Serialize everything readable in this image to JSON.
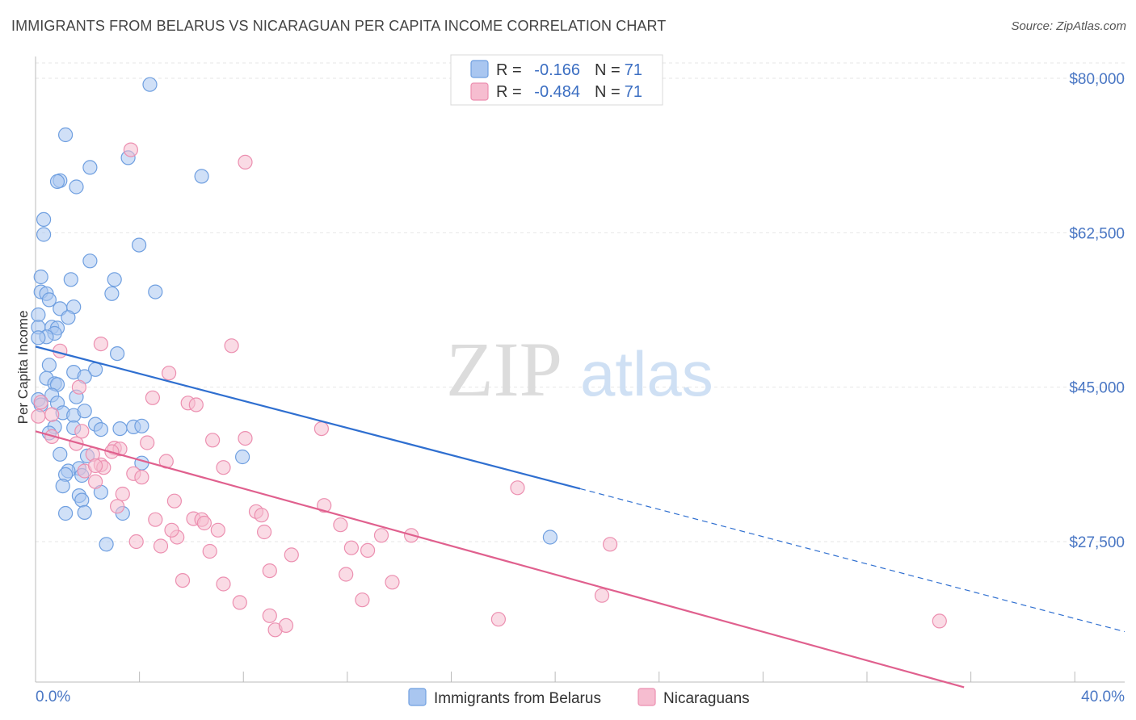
{
  "title": "IMMIGRANTS FROM BELARUS VS NICARAGUAN PER CAPITA INCOME CORRELATION CHART",
  "source": "Source: ZipAtlas.com",
  "watermark": {
    "zip": "ZIP",
    "atlas": "atlas"
  },
  "colors": {
    "blue_fill": "#a9c6f0",
    "blue_stroke": "#6f9fe0",
    "blue_line": "#2f6fd0",
    "pink_fill": "#f6bdd0",
    "pink_stroke": "#ec8fb0",
    "pink_line": "#e0608e",
    "grid": "#e6e6e6",
    "tick_text": "#4a77c4"
  },
  "legend": {
    "rows": [
      {
        "r_label": "R =",
        "r_value": "-0.166",
        "n_label": "N =",
        "n_value": "71"
      },
      {
        "r_label": "R =",
        "r_value": "-0.484",
        "n_label": "N =",
        "n_value": "71"
      }
    ]
  },
  "chart_data": {
    "type": "scatter",
    "title": "IMMIGRANTS FROM BELARUS VS NICARAGUAN PER CAPITA INCOME CORRELATION CHART",
    "xlabel": "",
    "ylabel": "Per Capita Income",
    "xlim": [
      0,
      40
    ],
    "ylim": [
      11000,
      82000
    ],
    "x_tick_labels": [
      "0.0%",
      "40.0%"
    ],
    "y_ticks": [
      {
        "value": 80000,
        "label": "$80,000"
      },
      {
        "value": 62500,
        "label": "$62,500"
      },
      {
        "value": 45000,
        "label": "$45,000"
      },
      {
        "value": 27500,
        "label": "$27,500"
      }
    ],
    "series": [
      {
        "name": "Immigrants from Belarus",
        "color": "blue",
        "trend": {
          "x0": 0,
          "y0": 49600,
          "x1": 20,
          "y1": 33500,
          "dash_to": 40,
          "dash_y": 17300
        },
        "points": [
          [
            4.2,
            79300
          ],
          [
            1.1,
            73600
          ],
          [
            3.4,
            71000
          ],
          [
            2.0,
            69900
          ],
          [
            6.1,
            68900
          ],
          [
            0.9,
            68400
          ],
          [
            0.8,
            68300
          ],
          [
            1.5,
            67700
          ],
          [
            0.3,
            64000
          ],
          [
            0.3,
            62300
          ],
          [
            3.8,
            61100
          ],
          [
            0.2,
            57500
          ],
          [
            2.0,
            59300
          ],
          [
            1.3,
            57200
          ],
          [
            2.9,
            57200
          ],
          [
            0.2,
            55800
          ],
          [
            0.4,
            55600
          ],
          [
            2.8,
            55600
          ],
          [
            4.4,
            55800
          ],
          [
            0.5,
            54900
          ],
          [
            1.4,
            54100
          ],
          [
            0.9,
            53900
          ],
          [
            0.1,
            53200
          ],
          [
            1.2,
            52900
          ],
          [
            0.6,
            51800
          ],
          [
            0.1,
            51800
          ],
          [
            0.8,
            51700
          ],
          [
            0.7,
            51100
          ],
          [
            0.4,
            50700
          ],
          [
            0.1,
            50600
          ],
          [
            3.0,
            48800
          ],
          [
            0.5,
            47500
          ],
          [
            2.2,
            47000
          ],
          [
            1.4,
            46700
          ],
          [
            1.8,
            46200
          ],
          [
            0.4,
            46000
          ],
          [
            0.7,
            45400
          ],
          [
            0.8,
            45300
          ],
          [
            0.6,
            44100
          ],
          [
            1.5,
            43900
          ],
          [
            0.1,
            43600
          ],
          [
            0.8,
            43200
          ],
          [
            1.0,
            42100
          ],
          [
            1.4,
            41800
          ],
          [
            1.8,
            42300
          ],
          [
            2.2,
            40800
          ],
          [
            0.7,
            40500
          ],
          [
            1.4,
            40400
          ],
          [
            2.4,
            40200
          ],
          [
            3.1,
            40300
          ],
          [
            3.6,
            40500
          ],
          [
            3.9,
            40600
          ],
          [
            0.9,
            37400
          ],
          [
            1.9,
            37200
          ],
          [
            7.6,
            37100
          ],
          [
            3.9,
            36400
          ],
          [
            1.6,
            35800
          ],
          [
            1.2,
            35500
          ],
          [
            1.7,
            35000
          ],
          [
            1.1,
            35100
          ],
          [
            1.0,
            33800
          ],
          [
            2.4,
            33100
          ],
          [
            1.6,
            32700
          ],
          [
            1.7,
            32200
          ],
          [
            1.1,
            30700
          ],
          [
            1.8,
            30800
          ],
          [
            3.2,
            30700
          ],
          [
            2.6,
            27200
          ],
          [
            18.9,
            28000
          ],
          [
            0.5,
            39800
          ],
          [
            0.2,
            43000
          ]
        ]
      },
      {
        "name": "Nicaraguans",
        "color": "pink",
        "trend": {
          "x0": 0,
          "y0": 40000,
          "x1": 34.1,
          "y1": 11000
        },
        "points": [
          [
            3.5,
            71900
          ],
          [
            7.7,
            70500
          ],
          [
            2.4,
            49900
          ],
          [
            7.2,
            49700
          ],
          [
            0.9,
            49100
          ],
          [
            4.9,
            46600
          ],
          [
            1.6,
            45000
          ],
          [
            4.3,
            43800
          ],
          [
            5.6,
            43200
          ],
          [
            5.9,
            43000
          ],
          [
            0.2,
            43300
          ],
          [
            0.6,
            41900
          ],
          [
            0.1,
            41700
          ],
          [
            10.5,
            40300
          ],
          [
            1.7,
            40000
          ],
          [
            0.6,
            39400
          ],
          [
            6.5,
            39000
          ],
          [
            7.7,
            39200
          ],
          [
            4.1,
            38700
          ],
          [
            1.5,
            38600
          ],
          [
            2.9,
            38100
          ],
          [
            3.1,
            38000
          ],
          [
            2.8,
            37700
          ],
          [
            2.1,
            37400
          ],
          [
            4.8,
            36600
          ],
          [
            2.4,
            36200
          ],
          [
            6.9,
            35900
          ],
          [
            2.5,
            35900
          ],
          [
            1.8,
            35500
          ],
          [
            3.6,
            35200
          ],
          [
            3.9,
            34800
          ],
          [
            2.2,
            34300
          ],
          [
            3.2,
            32900
          ],
          [
            17.7,
            33600
          ],
          [
            5.1,
            32100
          ],
          [
            10.6,
            31600
          ],
          [
            8.1,
            30900
          ],
          [
            8.3,
            30500
          ],
          [
            4.4,
            30000
          ],
          [
            5.8,
            30100
          ],
          [
            6.1,
            30000
          ],
          [
            6.2,
            29600
          ],
          [
            11.2,
            29400
          ],
          [
            6.7,
            28800
          ],
          [
            8.4,
            28600
          ],
          [
            12.7,
            28200
          ],
          [
            13.8,
            28200
          ],
          [
            5.2,
            28000
          ],
          [
            3.7,
            27500
          ],
          [
            4.6,
            27000
          ],
          [
            11.6,
            26800
          ],
          [
            12.2,
            26500
          ],
          [
            6.4,
            26400
          ],
          [
            9.4,
            26000
          ],
          [
            21.1,
            27200
          ],
          [
            8.6,
            24200
          ],
          [
            11.4,
            23800
          ],
          [
            5.4,
            23100
          ],
          [
            13.1,
            22900
          ],
          [
            6.9,
            22700
          ],
          [
            20.8,
            21400
          ],
          [
            12.0,
            20900
          ],
          [
            7.5,
            20600
          ],
          [
            8.6,
            19100
          ],
          [
            17.0,
            18700
          ],
          [
            33.2,
            18500
          ],
          [
            8.8,
            17500
          ],
          [
            9.2,
            18000
          ],
          [
            5.0,
            28800
          ],
          [
            3.0,
            31500
          ],
          [
            2.2,
            36100
          ]
        ]
      }
    ],
    "legend_position": "top-center"
  }
}
